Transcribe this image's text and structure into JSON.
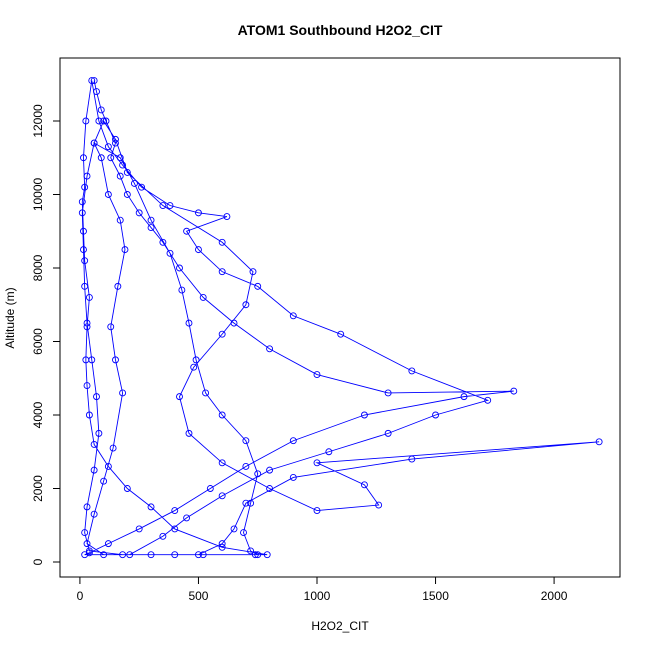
{
  "chart_data": {
    "type": "line",
    "title": "ATOM1 Southbound H2O2_CIT",
    "x_label": "H2O2_CIT",
    "y_label": "Altitude (m)",
    "x": [
      60,
      70,
      90,
      110,
      150,
      130,
      170,
      200,
      250,
      300,
      350,
      420,
      520,
      650,
      800,
      1000,
      1300,
      1830,
      1620,
      1200,
      900,
      700,
      550,
      400,
      250,
      120,
      40,
      20,
      300,
      520,
      740,
      790,
      600,
      400,
      300,
      200,
      120,
      60,
      40,
      30,
      25,
      30,
      40,
      20,
      15,
      10,
      20,
      15,
      25,
      50,
      80,
      120,
      180,
      260,
      380,
      500,
      620,
      450,
      500,
      600,
      750,
      900,
      1100,
      1400,
      1720,
      1500,
      1300,
      1050,
      800,
      600,
      450,
      350,
      210,
      180,
      40,
      20,
      30,
      60,
      80,
      70,
      50,
      30,
      20,
      15,
      10,
      30,
      60,
      100,
      150,
      200,
      350,
      600,
      730,
      700,
      600,
      480,
      420,
      460,
      600,
      800,
      1000,
      1260,
      1200,
      1000,
      2190,
      1400,
      900,
      700,
      650,
      600,
      500,
      400,
      100,
      30,
      60,
      100,
      140,
      180,
      150,
      130,
      160,
      190,
      170,
      120,
      90,
      60,
      170,
      230,
      300,
      380,
      430,
      460,
      490,
      530,
      600,
      700,
      750,
      720,
      690,
      720,
      750
    ],
    "values": [
      13100,
      12800,
      12300,
      12000,
      11400,
      11000,
      10500,
      10000,
      9500,
      9100,
      8700,
      8000,
      7200,
      6500,
      5800,
      5100,
      4600,
      4650,
      4500,
      4000,
      3300,
      2600,
      2000,
      1400,
      900,
      500,
      250,
      200,
      200,
      200,
      200,
      200,
      400,
      900,
      1500,
      2000,
      2600,
      3200,
      4000,
      4800,
      5500,
      6400,
      7200,
      8200,
      9000,
      9800,
      10200,
      11000,
      12000,
      13100,
      12000,
      11300,
      10800,
      10200,
      9700,
      9500,
      9400,
      9000,
      8500,
      7900,
      7500,
      6700,
      6200,
      5200,
      4400,
      4000,
      3500,
      3000,
      2500,
      1800,
      1200,
      700,
      200,
      200,
      300,
      800,
      1500,
      2500,
      3500,
      4500,
      5500,
      6500,
      7500,
      8500,
      9500,
      10500,
      11400,
      12000,
      11500,
      10600,
      9700,
      8700,
      7900,
      7000,
      6200,
      5300,
      4500,
      3500,
      2700,
      2000,
      1400,
      1550,
      2100,
      2700,
      3270,
      2800,
      2300,
      1600,
      900,
      500,
      200,
      200,
      200,
      500,
      1300,
      2200,
      3100,
      4600,
      5500,
      6400,
      7500,
      8500,
      9300,
      10000,
      11000,
      11400,
      11000,
      10300,
      9300,
      8400,
      7400,
      6500,
      5500,
      4600,
      4000,
      3300,
      2400,
      1600,
      800,
      300,
      200
    ],
    "color": "#0000ff",
    "xlim": [
      -84,
      2278
    ],
    "ylim": [
      -408,
      13714
    ],
    "xticks": [
      0,
      500,
      1000,
      1500,
      2000
    ],
    "yticks": [
      0,
      2000,
      4000,
      6000,
      8000,
      10000,
      12000
    ]
  }
}
